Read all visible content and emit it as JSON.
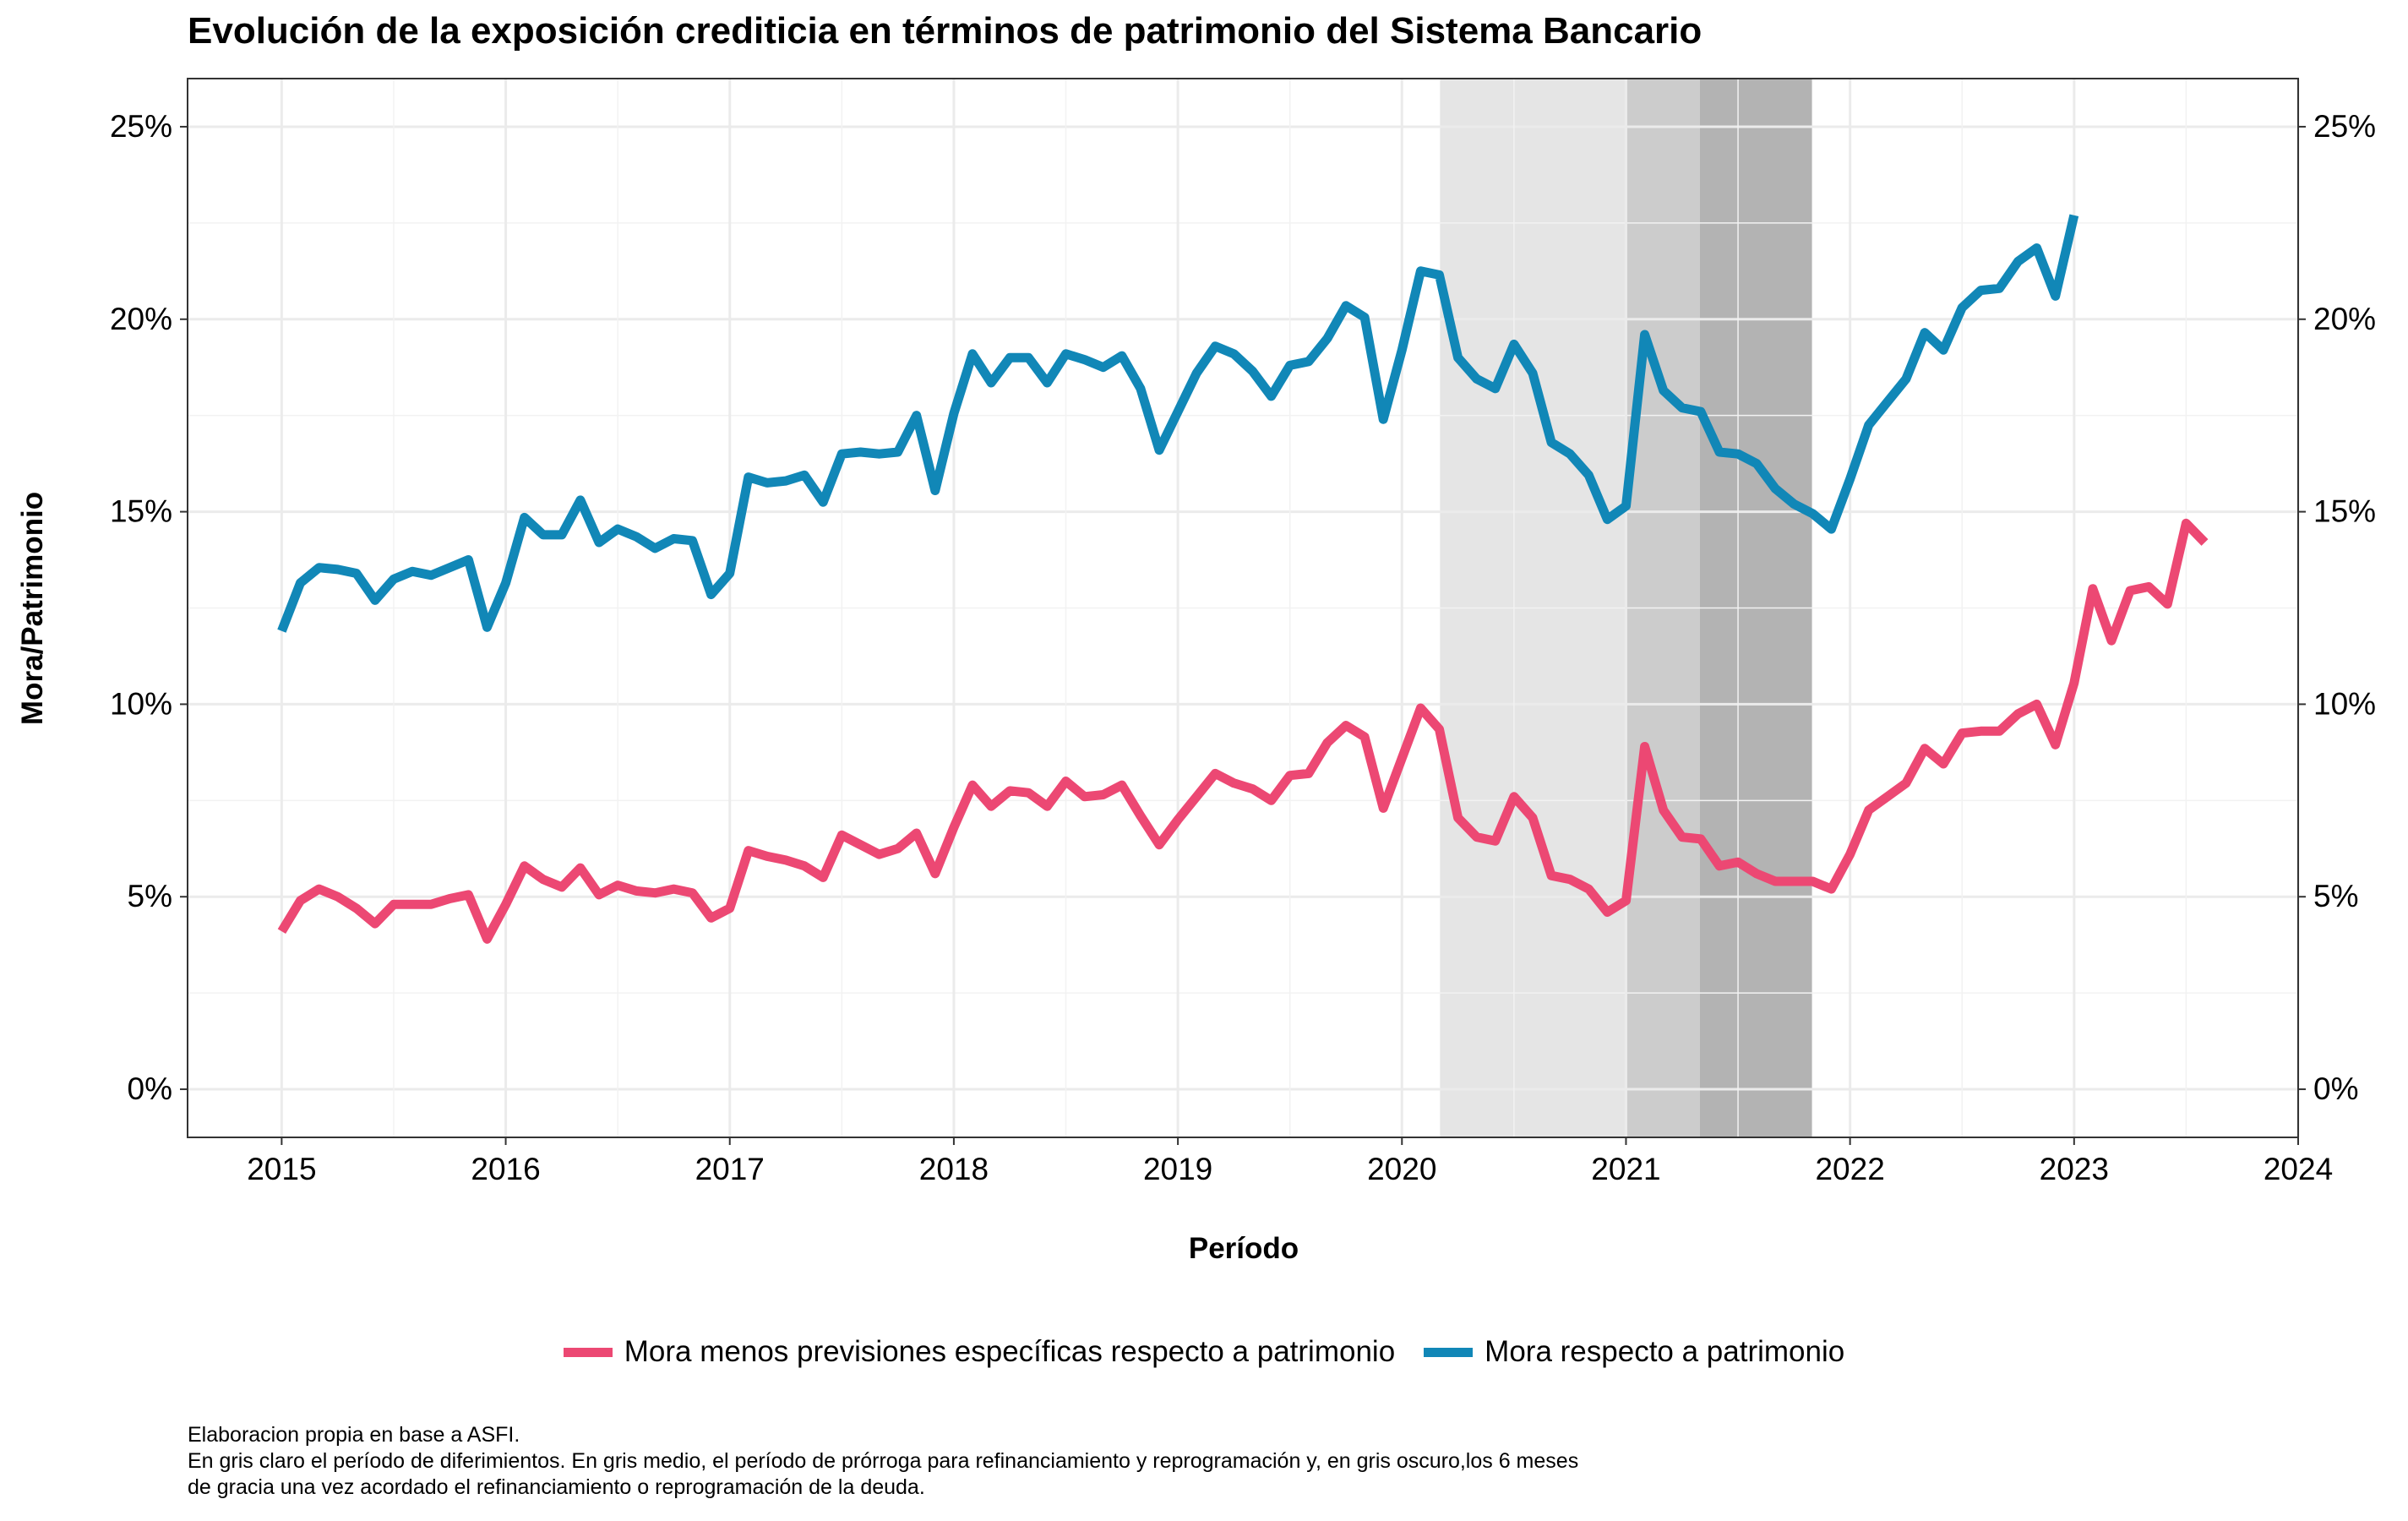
{
  "chart_data": {
    "type": "line",
    "title": "Evolución de la exposición crediticia en términos de patrimonio del Sistema Bancario",
    "xlabel": "Período",
    "ylabel": "Mora/Patrimonio",
    "xlim": [
      2014.58,
      2024.0
    ],
    "ylim": [
      -0.0125,
      0.2625
    ],
    "x_ticks": [
      2015,
      2016,
      2017,
      2018,
      2019,
      2020,
      2021,
      2022,
      2023,
      2024
    ],
    "y_ticks": [
      0,
      0.05,
      0.1,
      0.15,
      0.2,
      0.25
    ],
    "y_tick_labels": [
      "0%",
      "5%",
      "10%",
      "15%",
      "20%",
      "25%"
    ],
    "secondary_y_axis": true,
    "grid": true,
    "legend_position": "bottom",
    "shaded_periods": [
      {
        "start": 2020.17,
        "end": 2021.0,
        "shade": "light",
        "color": "#e5e5e5"
      },
      {
        "start": 2021.0,
        "end": 2021.33,
        "shade": "medium",
        "color": "#cccccc"
      },
      {
        "start": 2021.33,
        "end": 2021.83,
        "shade": "dark",
        "color": "#b3b3b3"
      }
    ],
    "series": [
      {
        "name": "Mora menos previsiones específicas respecto a patrimonio",
        "color": "#ec4873",
        "start_year": 2015,
        "values": [
          4.1,
          4.9,
          5.2,
          5.0,
          4.7,
          4.3,
          4.8,
          4.8,
          4.8,
          4.95,
          5.05,
          3.9,
          4.8,
          5.8,
          5.45,
          5.25,
          5.75,
          5.05,
          5.3,
          5.15,
          5.1,
          5.2,
          5.1,
          4.45,
          4.7,
          6.2,
          6.05,
          5.95,
          5.8,
          5.5,
          6.6,
          6.35,
          6.1,
          6.25,
          6.65,
          5.6,
          6.8,
          7.9,
          7.35,
          7.75,
          7.7,
          7.35,
          8.0,
          7.6,
          7.65,
          7.9,
          7.1,
          6.35,
          7.0,
          7.6,
          8.2,
          7.95,
          7.8,
          7.5,
          8.15,
          8.2,
          9.0,
          9.45,
          9.15,
          7.3,
          8.6,
          9.9,
          9.35,
          7.05,
          6.55,
          6.45,
          7.6,
          7.05,
          5.55,
          5.45,
          5.2,
          4.6,
          4.9,
          8.9,
          7.25,
          6.55,
          6.5,
          5.8,
          5.9,
          5.6,
          5.4,
          5.4,
          5.4,
          5.2,
          6.1,
          7.25,
          7.6,
          7.95,
          8.85,
          8.45,
          9.25,
          9.3,
          9.3,
          9.75,
          10.0,
          8.95,
          10.55,
          13.0,
          11.65,
          12.95,
          13.05,
          12.6,
          14.7,
          14.2
        ],
        "unit": "percent"
      },
      {
        "name": "Mora respecto a patrimonio",
        "color": "#1187b7",
        "start_year": 2015,
        "values": [
          11.9,
          13.15,
          13.55,
          13.5,
          13.4,
          12.7,
          13.25,
          13.45,
          13.35,
          13.55,
          13.75,
          12.0,
          13.15,
          14.85,
          14.4,
          14.4,
          15.3,
          14.2,
          14.55,
          14.35,
          14.05,
          14.3,
          14.25,
          12.85,
          13.4,
          15.9,
          15.75,
          15.8,
          15.95,
          15.25,
          16.5,
          16.55,
          16.5,
          16.55,
          17.5,
          15.55,
          17.55,
          19.1,
          18.35,
          19.0,
          19.0,
          18.35,
          19.1,
          18.95,
          18.75,
          19.05,
          18.2,
          16.6,
          17.6,
          18.6,
          19.3,
          19.1,
          18.65,
          18.0,
          18.8,
          18.9,
          19.5,
          20.35,
          20.05,
          17.4,
          19.2,
          21.25,
          21.15,
          19.0,
          18.45,
          18.2,
          19.35,
          18.6,
          16.8,
          16.5,
          15.95,
          14.8,
          15.15,
          19.6,
          18.15,
          17.7,
          17.6,
          16.55,
          16.5,
          16.25,
          15.6,
          15.2,
          14.95,
          14.55,
          15.85,
          17.25,
          17.85,
          18.45,
          19.65,
          19.2,
          20.3,
          20.75,
          20.8,
          21.5,
          21.85,
          20.6,
          22.7
        ],
        "unit": "percent"
      }
    ],
    "caption": [
      "Elaboracion propia en base a ASFI.",
      "En gris claro el período de diferimientos. En gris medio, el período de prórroga para refinanciamiento y reprogramación y, en gris oscuro,los 6 meses",
      "de gracia una vez acordado el refinanciamiento o reprogramación de la deuda."
    ]
  }
}
